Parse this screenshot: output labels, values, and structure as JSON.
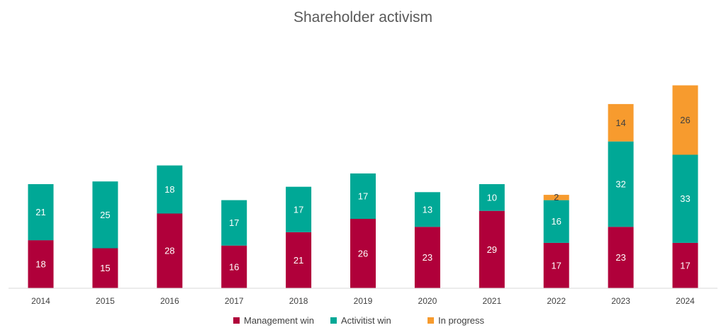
{
  "chart_data": {
    "type": "bar",
    "stacked": true,
    "title": "Shareholder activism",
    "xlabel": "",
    "ylabel": "",
    "ylim": [
      0,
      78
    ],
    "grid": false,
    "legend_position": "bottom",
    "categories": [
      "2014",
      "2015",
      "2016",
      "2017",
      "2018",
      "2019",
      "2020",
      "2021",
      "2022",
      "2023",
      "2024"
    ],
    "series": [
      {
        "name": "Management win",
        "color": "#b0003a",
        "label_color": "#ffffff",
        "values": [
          18,
          15,
          28,
          16,
          21,
          26,
          23,
          29,
          17,
          23,
          17
        ]
      },
      {
        "name": "Activitist win",
        "color": "#00a896",
        "label_color": "#ffffff",
        "values": [
          21,
          25,
          18,
          17,
          17,
          17,
          13,
          10,
          16,
          32,
          33
        ]
      },
      {
        "name": "In progress",
        "color": "#f79b2e",
        "label_color": "#404040",
        "values": [
          null,
          null,
          null,
          null,
          null,
          null,
          null,
          null,
          2,
          14,
          26
        ]
      }
    ]
  }
}
